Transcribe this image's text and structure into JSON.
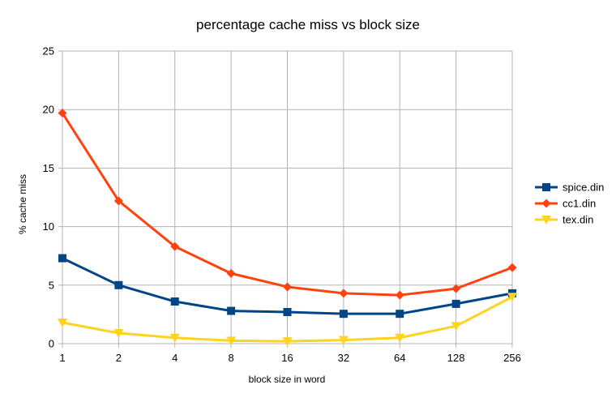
{
  "chart_data": {
    "type": "line",
    "title": "percentage cache miss vs block size",
    "xlabel": "block size in word",
    "ylabel": "% cache miss",
    "categories": [
      "1",
      "2",
      "4",
      "8",
      "16",
      "32",
      "64",
      "128",
      "256"
    ],
    "ylim": [
      0,
      25
    ],
    "yticks": [
      0,
      5,
      10,
      15,
      20,
      25
    ],
    "grid": true,
    "legend_position": "right",
    "series": [
      {
        "name": "spice.din",
        "color": "#004586",
        "marker": "square",
        "values": [
          7.3,
          5.0,
          3.6,
          2.8,
          2.7,
          2.55,
          2.55,
          3.4,
          4.3
        ]
      },
      {
        "name": "cc1.din",
        "color": "#ff420e",
        "marker": "diamond",
        "values": [
          19.7,
          12.2,
          8.3,
          6.0,
          4.85,
          4.3,
          4.15,
          4.7,
          6.5
        ]
      },
      {
        "name": "tex.din",
        "color": "#ffd320",
        "marker": "triangle-down",
        "values": [
          1.8,
          0.9,
          0.5,
          0.25,
          0.2,
          0.3,
          0.5,
          1.5,
          4.0
        ]
      }
    ]
  }
}
